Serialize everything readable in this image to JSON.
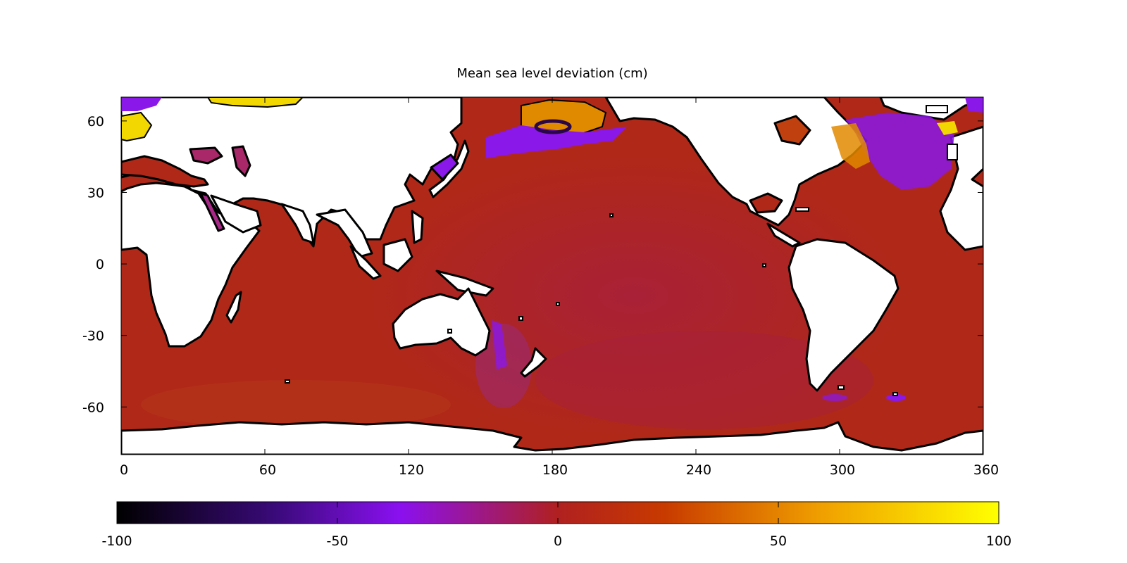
{
  "title": "Mean sea level deviation (cm)",
  "map": {
    "x_axis": {
      "range": [
        0,
        360
      ],
      "ticks": [
        0,
        60,
        120,
        180,
        240,
        300,
        360
      ]
    },
    "y_axis": {
      "range": [
        -80,
        70
      ],
      "ticks": [
        60,
        30,
        0,
        -30,
        -60
      ]
    },
    "ocean_color": "#b02818",
    "land_color": "#ffffff",
    "coast_color": "#000000",
    "highlight_colors": {
      "yellow": "#f2d800",
      "orange": "#e08a00",
      "purple": "#8a18e8",
      "magenta": "#9a2090",
      "dark": "#2a0848"
    }
  },
  "colorbar": {
    "range": [
      -100,
      100
    ],
    "ticks": [
      "-100",
      "-50",
      "0",
      "50",
      "100"
    ],
    "gradient": [
      "#000000",
      "#3a0a7a",
      "#8a10f0",
      "#b02020",
      "#d04a00",
      "#f0a000",
      "#ffff00"
    ]
  }
}
